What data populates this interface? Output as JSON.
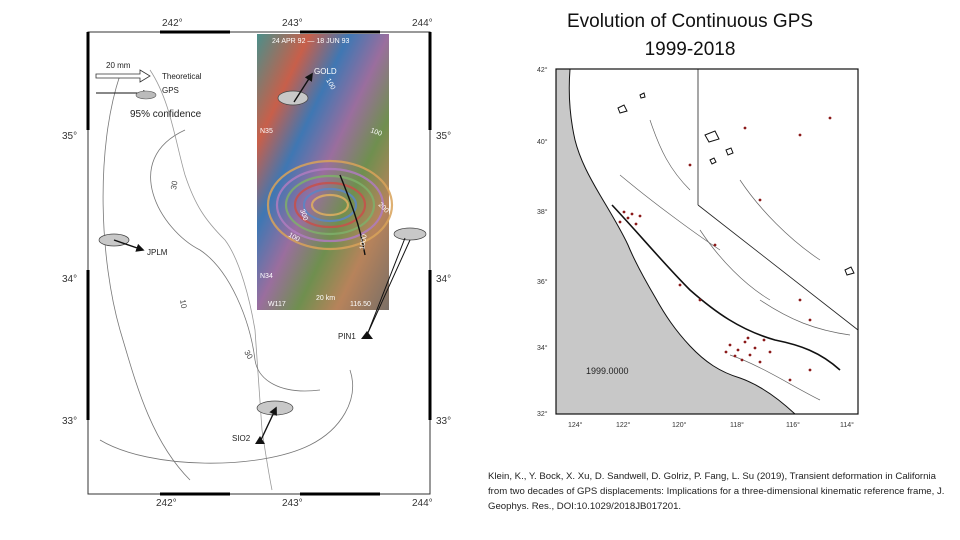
{
  "slide": {
    "title_line1": "Evolution of Continuous GPS",
    "title_line2": "1999-2018",
    "citation": "Klein, K., Y. Bock, X. Xu, D. Sandwell, D. Golriz, P. Fang, L. Su (2019), Transient deformation in California from two decades of GPS displacements: Implications for a three-dimensional kinematic reference frame, J. Geophys. Res., DOI:10.1029/2018JB017201."
  },
  "left_map": {
    "lon_ticks": [
      "242°",
      "243°",
      "244°"
    ],
    "lat_ticks": [
      "35°",
      "34°",
      "33°"
    ],
    "legend": {
      "scale": "20 mm",
      "theoretical": "Theoretical",
      "gps": "GPS",
      "confidence": "95% confidence"
    },
    "stations": [
      "GOLD",
      "JPLM",
      "PIN1",
      "SIO2"
    ],
    "contours": [
      "30",
      "10",
      "30"
    ],
    "insar": {
      "header": "24 APR 92 — 18 JUN 93",
      "n35": "N35",
      "n34": "N34",
      "w117": "W117",
      "scale": "20 km",
      "w116": "116.50",
      "contours": [
        "100",
        "100",
        "200",
        "300",
        "100",
        "1000"
      ]
    }
  },
  "right_map": {
    "year": "1999.0000",
    "lat_ticks": [
      "42°",
      "40°",
      "38°",
      "36°",
      "34°",
      "32°"
    ],
    "lon_ticks": [
      "124°",
      "122°",
      "120°",
      "118°",
      "116°",
      "114°"
    ],
    "colors": {
      "land": "#ffffff",
      "ocean": "#c8c8c8",
      "stations": "#8b1a1a"
    }
  }
}
